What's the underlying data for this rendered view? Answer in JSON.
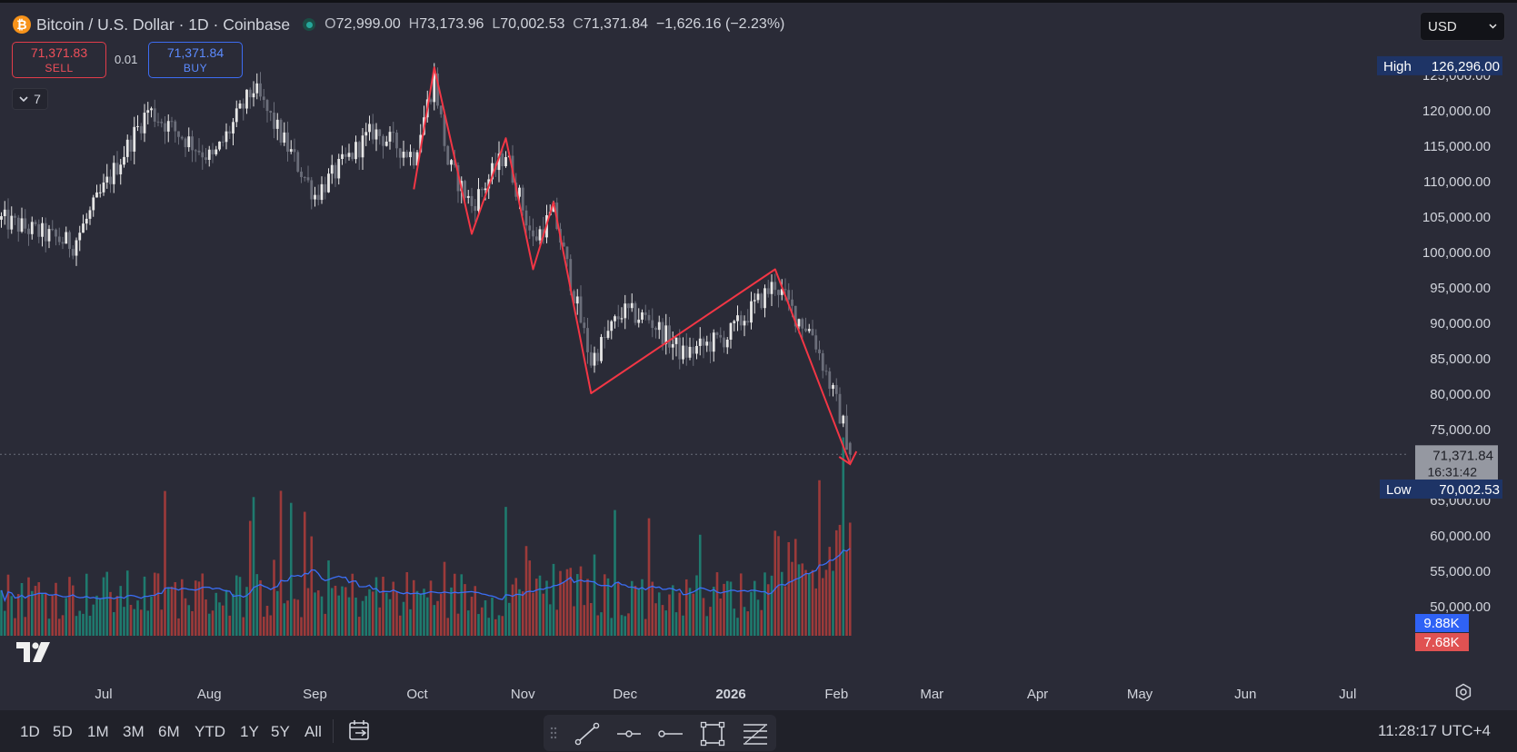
{
  "header": {
    "title": "Bitcoin / U.S. Dollar · 1D · Coinbase",
    "coin_symbol": "₿",
    "open_label": "O",
    "open": "72,999.00",
    "high_label": "H",
    "high": "73,173.96",
    "low_label": "L",
    "low": "70,002.53",
    "close_label": "C",
    "close": "71,371.84",
    "change": "−1,626.16 (−2.23%)"
  },
  "trade": {
    "sell_price": "71,371.83",
    "sell_label": "SELL",
    "spread": "0.01",
    "buy_price": "71,371.84",
    "buy_label": "BUY"
  },
  "indicators_collapsed": {
    "count": "7"
  },
  "currency": {
    "selected": "USD"
  },
  "chart_data": {
    "type": "candlestick",
    "symbol": "BTCUSD",
    "interval": "1D",
    "price_axis": {
      "ticks": [
        "125,000.00",
        "120,000.00",
        "115,000.00",
        "110,000.00",
        "105,000.00",
        "100,000.00",
        "95,000.00",
        "90,000.00",
        "85,000.00",
        "80,000.00",
        "75,000.00",
        "70,000.00",
        "65,000.00",
        "60,000.00",
        "55,000.00",
        "50,000.00"
      ],
      "ylim": [
        50000,
        127500
      ]
    },
    "time_axis": {
      "ticks": [
        "Jul",
        "Aug",
        "Sep",
        "Oct",
        "Nov",
        "Dec",
        "2026",
        "Feb",
        "Mar",
        "Apr",
        "May",
        "Jun",
        "Jul"
      ],
      "bold": "2026"
    },
    "markers": {
      "high": {
        "label": "High",
        "value": "126,296.00"
      },
      "last": {
        "value": "71,371.84",
        "countdown": "16:31:42"
      },
      "low": {
        "label": "Low",
        "value": "70,002.53"
      }
    },
    "volume_labels": {
      "ma": "9.88K",
      "last": "7.68K"
    },
    "colors": {
      "up": "#e6e6e6",
      "down": "#6b6e7a",
      "drawing": "#f23645",
      "vol_up": "#1f7a6e",
      "vol_down": "#9c3a3a",
      "vol_ma": "#3b6ef5"
    },
    "pattern_drawing_points": [
      {
        "date": "2025-09-30",
        "price": 108800
      },
      {
        "date": "2025-10-06",
        "price": 126000
      },
      {
        "date": "2025-10-17",
        "price": 102500
      },
      {
        "date": "2025-10-27",
        "price": 116000
      },
      {
        "date": "2025-11-04",
        "price": 97500
      },
      {
        "date": "2025-11-10",
        "price": 107000
      },
      {
        "date": "2025-11-21",
        "price": 80000
      },
      {
        "date": "2026-01-14",
        "price": 97500
      },
      {
        "date": "2026-02-05",
        "price": 70000
      }
    ],
    "candle_anchors": [
      {
        "date": "2025-06-01",
        "price": 104500
      },
      {
        "date": "2025-06-22",
        "price": 101000
      },
      {
        "date": "2025-07-14",
        "price": 120000
      },
      {
        "date": "2025-08-02",
        "price": 113000
      },
      {
        "date": "2025-08-14",
        "price": 123000
      },
      {
        "date": "2025-09-01",
        "price": 108000
      },
      {
        "date": "2025-09-18",
        "price": 117000
      },
      {
        "date": "2025-09-30",
        "price": 113500
      },
      {
        "date": "2025-10-06",
        "price": 124500
      },
      {
        "date": "2025-10-10",
        "price": 112500
      },
      {
        "date": "2025-10-17",
        "price": 106500
      },
      {
        "date": "2025-10-27",
        "price": 114000
      },
      {
        "date": "2025-11-04",
        "price": 101500
      },
      {
        "date": "2025-11-10",
        "price": 105500
      },
      {
        "date": "2025-11-21",
        "price": 84500
      },
      {
        "date": "2025-11-30",
        "price": 91500
      },
      {
        "date": "2025-12-08",
        "price": 90500
      },
      {
        "date": "2025-12-18",
        "price": 85500
      },
      {
        "date": "2025-12-31",
        "price": 88000
      },
      {
        "date": "2026-01-14",
        "price": 95500
      },
      {
        "date": "2026-01-20",
        "price": 91000
      },
      {
        "date": "2026-01-25",
        "price": 88500
      },
      {
        "date": "2026-02-01",
        "price": 78500
      },
      {
        "date": "2026-02-03",
        "price": 75500
      },
      {
        "date": "2026-02-05",
        "price": 71400
      }
    ]
  },
  "bottom_bar": {
    "timeframes": [
      "1D",
      "5D",
      "1M",
      "3M",
      "6M",
      "YTD",
      "1Y",
      "5Y",
      "All"
    ],
    "clock": "11:28:17 UTC+4"
  },
  "icons": {
    "logo": "tradingview-logo-icon",
    "settings": "gear-icon",
    "calendar": "calendar-range-icon"
  }
}
